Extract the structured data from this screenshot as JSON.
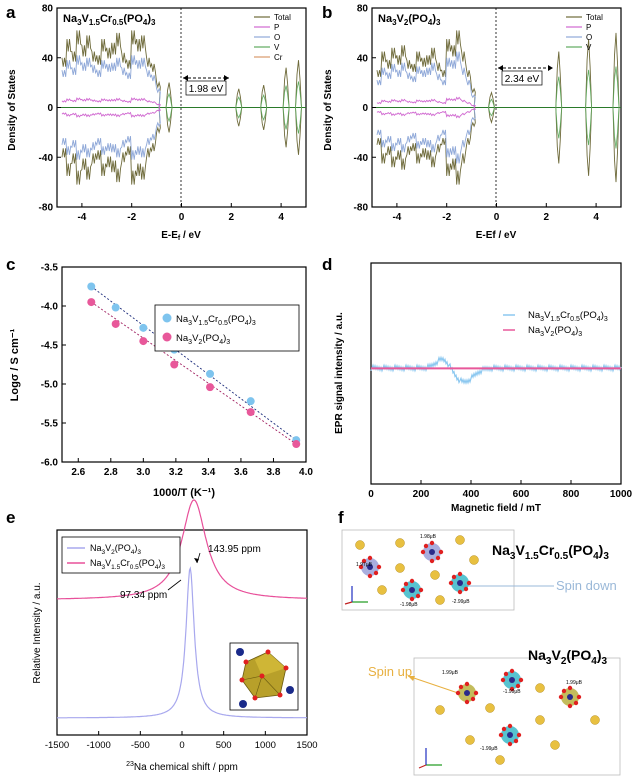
{
  "panel_labels": {
    "a": "a",
    "b": "b",
    "c": "c",
    "d": "d",
    "e": "e",
    "f": "f"
  },
  "chart_data": [
    {
      "id": "a",
      "type": "line",
      "title": "Na3V1.5Cr0.5(PO4)3",
      "xlabel": "E-Ef / eV",
      "ylabel": "Density of States",
      "xlim": [
        -5,
        5
      ],
      "ylim": [
        -80,
        80
      ],
      "xticks": [
        -4,
        -2,
        0,
        2,
        4
      ],
      "yticks": [
        -80,
        -40,
        0,
        40,
        80
      ],
      "legend": [
        "Total",
        "P",
        "O",
        "V",
        "Cr"
      ],
      "legend_colors": [
        "#6e6a3a",
        "#d068d0",
        "#8fa8d8",
        "#5faa5f",
        "#d89a6a"
      ],
      "annotation": "1.98 eV",
      "bandgap": [
        0,
        1.98
      ],
      "envelope": {
        "x": [
          -4.8,
          -4.6,
          -4.4,
          -4.2,
          -4.0,
          -3.8,
          -3.6,
          -3.4,
          -3.2,
          -3.0,
          -2.8,
          -2.6,
          -2.4,
          -2.2,
          -2.0,
          -1.8,
          -1.6,
          -1.4,
          -1.2,
          -1.0
        ],
        "total": [
          40,
          55,
          45,
          62,
          50,
          58,
          45,
          42,
          55,
          48,
          52,
          60,
          44,
          38,
          62,
          55,
          58,
          40,
          35,
          20
        ],
        "o": [
          30,
          38,
          32,
          42,
          36,
          40,
          34,
          30,
          38,
          35,
          36,
          40,
          32,
          28,
          42,
          38,
          40,
          30,
          26,
          15
        ]
      },
      "peaks_conduction": [
        {
          "x": -0.5,
          "h": 20
        },
        {
          "x": 2.3,
          "h": 15
        },
        {
          "x": 3.3,
          "h": 18
        },
        {
          "x": 4.2,
          "h": 32
        },
        {
          "x": 4.7,
          "h": 38
        }
      ]
    },
    {
      "id": "b",
      "type": "line",
      "title": "Na3V2(PO4)3",
      "xlabel": "E-Ef / eV",
      "ylabel": "Density of States",
      "xlim": [
        -5,
        5
      ],
      "ylim": [
        -80,
        80
      ],
      "xticks": [
        -4,
        -2,
        0,
        2,
        4
      ],
      "yticks": [
        -80,
        -40,
        0,
        40,
        80
      ],
      "legend": [
        "Total",
        "P",
        "O",
        "V"
      ],
      "legend_colors": [
        "#6e6a3a",
        "#d068d0",
        "#8fa8d8",
        "#5faa5f"
      ],
      "annotation": "2.34 eV",
      "bandgap": [
        0,
        2.34
      ],
      "envelope": {
        "x": [
          -4.8,
          -4.6,
          -4.4,
          -4.2,
          -4.0,
          -3.8,
          -3.6,
          -3.4,
          -3.2,
          -3.0,
          -2.8,
          -2.6,
          -2.4,
          -2.2,
          -2.0,
          -1.8,
          -1.6,
          -1.4,
          -1.2,
          -1.0
        ],
        "total": [
          30,
          45,
          38,
          48,
          42,
          50,
          38,
          35,
          45,
          40,
          42,
          48,
          36,
          30,
          55,
          50,
          62,
          45,
          30,
          15
        ],
        "o": [
          22,
          32,
          28,
          35,
          30,
          36,
          28,
          25,
          33,
          30,
          32,
          36,
          27,
          22,
          40,
          38,
          45,
          32,
          22,
          10
        ]
      },
      "peaks_conduction": [
        {
          "x": -0.2,
          "h": 12
        },
        {
          "x": 2.5,
          "h": 45
        },
        {
          "x": 3.7,
          "h": 55
        },
        {
          "x": 4.8,
          "h": 60
        }
      ]
    },
    {
      "id": "c",
      "type": "scatter",
      "xlabel": "1000/T (K⁻¹)",
      "ylabel": "Logσ / S cm⁻¹",
      "xlim": [
        2.5,
        4.0
      ],
      "ylim": [
        -6.0,
        -3.5
      ],
      "xticks": [
        2.6,
        2.8,
        3.0,
        3.2,
        3.4,
        3.6,
        3.8,
        4.0
      ],
      "yticks": [
        -6.0,
        -5.5,
        -5.0,
        -4.5,
        -4.0,
        -3.5
      ],
      "series": [
        {
          "name": "Na3V1.5Cr0.5(PO4)3",
          "color": "#7ec4ee",
          "x": [
            2.68,
            2.83,
            3.0,
            3.19,
            3.41,
            3.66,
            3.94
          ],
          "y": [
            -3.75,
            -4.02,
            -4.28,
            -4.56,
            -4.87,
            -5.22,
            -5.72
          ]
        },
        {
          "name": "Na3V2(PO4)3",
          "color": "#e8589a",
          "x": [
            2.68,
            2.83,
            3.0,
            3.19,
            3.41,
            3.66,
            3.94
          ],
          "y": [
            -3.95,
            -4.23,
            -4.45,
            -4.75,
            -5.04,
            -5.36,
            -5.77
          ]
        }
      ]
    },
    {
      "id": "d",
      "type": "line",
      "xlabel": "Magnetic field / mT",
      "ylabel": "EPR signal intensity / a.u.",
      "xlim": [
        0,
        1000
      ],
      "xticks": [
        0,
        200,
        400,
        600,
        800,
        1000
      ],
      "series": [
        {
          "name": "Na3V1.5Cr0.5(PO4)3",
          "color": "#8cc8f0"
        },
        {
          "name": "Na3V2(PO4)3",
          "color": "#e8589a"
        }
      ],
      "signal": {
        "x_peak": 290,
        "x_trough": 370,
        "amp_peak": 10,
        "amp_trough": -14
      }
    },
    {
      "id": "e",
      "type": "line",
      "xlabel": "23Na chemical shift / ppm",
      "ylabel": "Relative Intensity / a.u.",
      "xlim": [
        -1500,
        1500
      ],
      "xticks": [
        -1500,
        -1000,
        -500,
        0,
        500,
        1000,
        1500
      ],
      "series": [
        {
          "name": "Na3V2(PO4)3",
          "color": "#a8a8ee",
          "peak": 97.34
        },
        {
          "name": "Na3V1.5Cr0.5(PO4)3",
          "color": "#e8509a",
          "peak": 143.95
        }
      ],
      "annotations": [
        "143.95 ppm",
        "97.34 ppm"
      ]
    }
  ],
  "panel_f": {
    "top": {
      "title": "Na3V1.5Cr0.5(PO4)3",
      "label": "Spin down",
      "moments": [
        "1.98μB",
        "1.97μB",
        "-2.99μB",
        "-1.98μB"
      ]
    },
    "bottom": {
      "title": "Na3V2(PO4)3",
      "label": "Spin up",
      "moments": [
        "1.99μB",
        "-1.99μB",
        "1.99μB",
        "-1.99μB"
      ]
    }
  }
}
